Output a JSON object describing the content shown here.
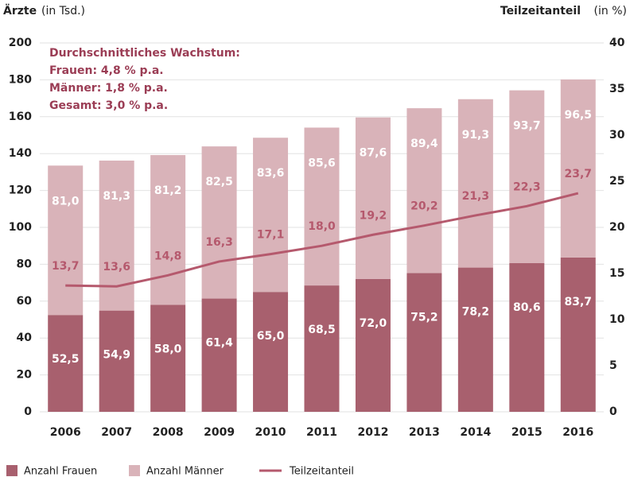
{
  "chart_data": {
    "type": "bar_line",
    "y_label": "Ärzte",
    "y_unit": "(in Tsd.)",
    "y2_label": "Teilzeitanteil",
    "y2_unit": "(in %)",
    "annotations": [
      "Durchschnittliches Wachstum:",
      "Frauen:  4,8 % p.a.",
      "Männer: 1,8 % p.a.",
      "Gesamt: 3,0 % p.a."
    ],
    "categories": [
      "2006",
      "2007",
      "2008",
      "2009",
      "2010",
      "2011",
      "2012",
      "2013",
      "2014",
      "2015",
      "2016"
    ],
    "series": [
      {
        "name": "Anzahl Frauen",
        "color": "#a8606e",
        "stack": true,
        "values": [
          52.5,
          54.9,
          58.0,
          61.4,
          65.0,
          68.5,
          72.0,
          75.2,
          78.2,
          80.6,
          83.7
        ],
        "value_labels": [
          "52,5",
          "54,9",
          "58,0",
          "61,4",
          "65,0",
          "68,5",
          "72,0",
          "75,2",
          "78,2",
          "80,6",
          "83,7"
        ]
      },
      {
        "name": "Anzahl Männer",
        "color": "#d9b3b9",
        "stack": true,
        "values": [
          81.0,
          81.3,
          81.2,
          82.5,
          83.6,
          85.6,
          87.6,
          89.4,
          91.3,
          93.7,
          96.5
        ],
        "value_labels": [
          "81,0",
          "81,3",
          "81,2",
          "82,5",
          "83,6",
          "85,6",
          "87,6",
          "89,4",
          "91,3",
          "93,7",
          "96,5"
        ]
      },
      {
        "name": "Teilzeitanteil",
        "color": "#b5596d",
        "axis": "y2",
        "kind": "line",
        "values": [
          13.7,
          13.6,
          14.8,
          16.3,
          17.1,
          18.0,
          19.2,
          20.2,
          21.3,
          22.3,
          23.7
        ],
        "value_labels": [
          "13,7",
          "13,6",
          "14,8",
          "16,3",
          "17,1",
          "18,0",
          "19,2",
          "20,2",
          "21,3",
          "22,3",
          "23,7"
        ]
      }
    ],
    "ylim": [
      0,
      200
    ],
    "yticks": [
      0,
      20,
      40,
      60,
      80,
      100,
      120,
      140,
      160,
      180,
      200
    ],
    "y2lim": [
      0,
      40
    ],
    "y2ticks": [
      0,
      5,
      10,
      15,
      20,
      25,
      30,
      35,
      40
    ],
    "grid": true
  }
}
